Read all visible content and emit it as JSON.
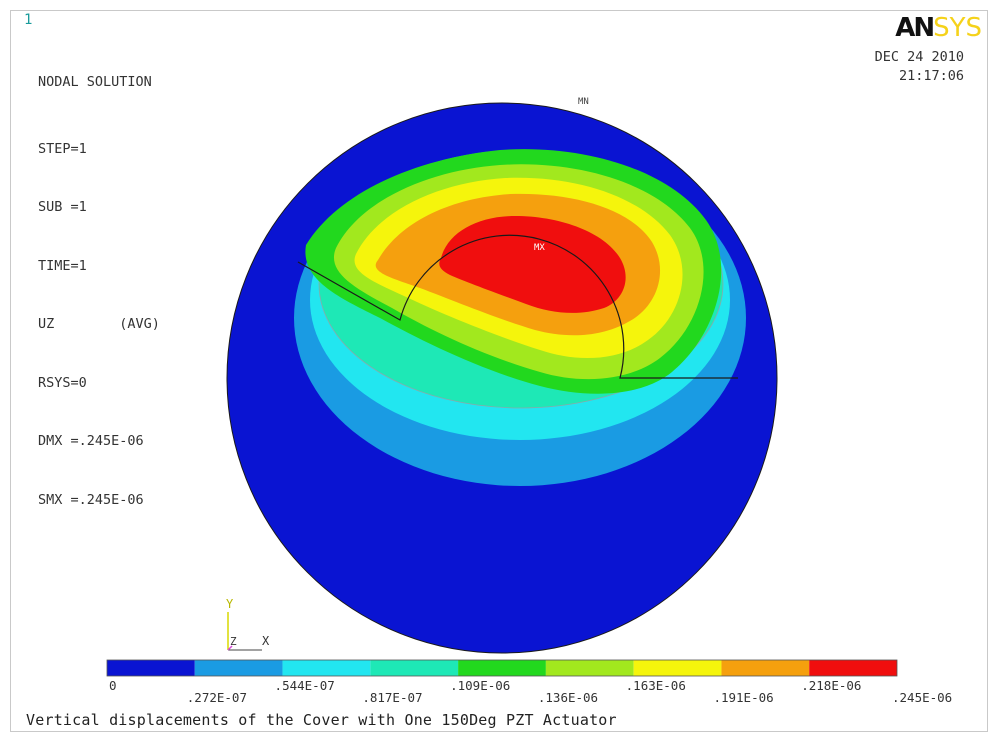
{
  "window_number": "1",
  "logo": {
    "an": "AN",
    "sys": "SYS"
  },
  "info": {
    "title": "NODAL SOLUTION",
    "step": "STEP=1",
    "sub": "SUB =1",
    "time": "TIME=1",
    "quantity": "UZ        (AVG)",
    "rsys": "RSYS=0",
    "dmx": "DMX =.245E-06",
    "smx": "SMX =.245E-06"
  },
  "datetime": {
    "date": "DEC 24 2010",
    "time": "21:17:06"
  },
  "markers": {
    "mn": "MN",
    "mx": "MX"
  },
  "triad": {
    "y": "Y",
    "z": "Z",
    "x": "X"
  },
  "legend": {
    "colors": [
      "#0a14d2",
      "#1a9be3",
      "#22e6f0",
      "#1ee8b6",
      "#22d81e",
      "#a2e81e",
      "#f5f50c",
      "#f5a00e",
      "#f00e0e"
    ],
    "labels": [
      "0",
      ".272E-07",
      ".544E-07",
      ".817E-07",
      ".109E-06",
      ".136E-06",
      ".163E-06",
      ".191E-06",
      ".218E-06",
      ".245E-06"
    ]
  },
  "caption": "Vertical displacements of the Cover with One 150Deg PZT Actuator"
}
